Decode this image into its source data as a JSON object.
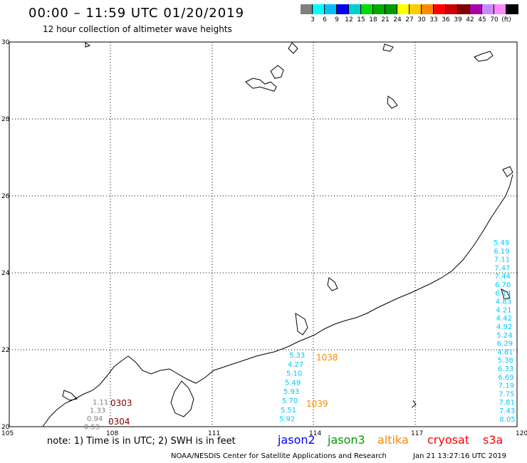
{
  "header": {
    "title": "00:00 – 11:59 UTC 01/20/2019",
    "subtitle": "12 hour collection of altimeter wave heights"
  },
  "color_scale": {
    "colors": [
      "#808080",
      "#00ffff",
      "#00bfff",
      "#0000ff",
      "#00cfcf",
      "#00dd00",
      "#00aa00",
      "#009900",
      "#ffff00",
      "#ffcc00",
      "#ff8800",
      "#ff0000",
      "#cc0000",
      "#800000",
      "#aa00aa",
      "#cc88ff",
      "#ff88ff",
      "#000000"
    ],
    "labels": [
      "3",
      "6",
      "9",
      "12",
      "15",
      "18",
      "21",
      "24",
      "27",
      "30",
      "33",
      "36",
      "39",
      "42",
      "45",
      "70",
      "(ft)"
    ]
  },
  "axes": {
    "x_ticks": [
      "105",
      "108",
      "111",
      "114",
      "117",
      "120"
    ],
    "y_ticks": [
      "30",
      "28",
      "26",
      "24",
      "22",
      "20"
    ]
  },
  "tracks": {
    "jason2_a": [
      "5.33",
      "4.27",
      "5.10",
      "5.49",
      "5.93",
      "5.70",
      "5.51",
      "5.92"
    ],
    "jason2_b": [
      "5.49",
      "6.19",
      "7.11",
      "7.47",
      "7.44",
      "6.70",
      "6.14",
      "4.83",
      "4.21",
      "4.42",
      "4.92",
      "5.24",
      "6.29",
      "4.81",
      "5.38",
      "6.33",
      "6.69",
      "7.19",
      "7.75",
      "7.81",
      "7.43",
      "8.05"
    ],
    "grey": [
      "1.11",
      "1.33",
      "0.94",
      "0.59"
    ],
    "times": [
      {
        "label": "0303",
        "color": "#800000"
      },
      {
        "label": "0304",
        "color": "#800000"
      },
      {
        "label": "1038",
        "color": "#ff8800"
      },
      {
        "label": "1039",
        "color": "#ff8800"
      }
    ]
  },
  "legend": {
    "note": "note: 1) Time is in UTC; 2) SWH is in feet",
    "items": [
      {
        "label": "jason2",
        "color": "#0000ff"
      },
      {
        "label": "jason3",
        "color": "#009900"
      },
      {
        "label": "altika",
        "color": "#ff8800"
      },
      {
        "label": "cryosat",
        "color": "#ff0000"
      },
      {
        "label": "s3a",
        "color": "#ff0000"
      }
    ]
  },
  "footer": {
    "credit": "NOAA/NESDIS Center for Satellite Applications and Research",
    "timestamp": "Jan 21 13:27:16 UTC 2019"
  }
}
